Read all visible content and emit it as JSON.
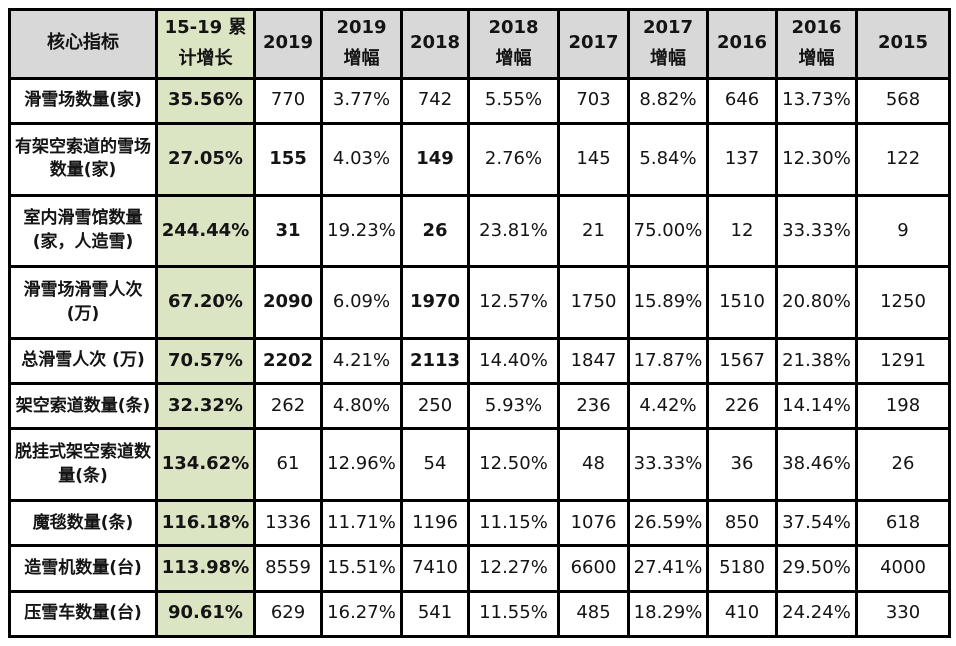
{
  "colors": {
    "header_bg": "#d8d8d8",
    "highlight_bg": "#dbe5c3",
    "border": "#000000",
    "text": "#141414"
  },
  "chart_data": {
    "type": "table",
    "title": "",
    "columns": [
      "核心指标",
      "15-19 累计增长",
      "2019",
      "2019 增幅",
      "2018",
      "2018 增幅",
      "2017",
      "2017 增幅",
      "2016",
      "2016 增幅",
      "2015"
    ],
    "header_cells": [
      {
        "key": "indicator",
        "green": false,
        "lines": [
          "核心指标"
        ]
      },
      {
        "key": "cum-growth",
        "green": true,
        "lines": [
          "15-19 累",
          "计增长"
        ]
      },
      {
        "key": "2019",
        "green": false,
        "lines": [
          "2019"
        ]
      },
      {
        "key": "2019-growth",
        "green": false,
        "lines": [
          "2019",
          "增幅"
        ]
      },
      {
        "key": "2018",
        "green": false,
        "lines": [
          "2018"
        ]
      },
      {
        "key": "2018-growth",
        "green": false,
        "lines": [
          "2018",
          "增幅"
        ]
      },
      {
        "key": "2017",
        "green": false,
        "lines": [
          "2017"
        ]
      },
      {
        "key": "2017-growth",
        "green": false,
        "lines": [
          "2017",
          "增幅"
        ]
      },
      {
        "key": "2016",
        "green": false,
        "lines": [
          "2016"
        ]
      },
      {
        "key": "2016-growth",
        "green": false,
        "lines": [
          "2016",
          "增幅"
        ]
      },
      {
        "key": "2015",
        "green": false,
        "lines": [
          "2015"
        ]
      }
    ],
    "rows": [
      [
        "滑雪场数量(家)",
        "35.56%",
        "770",
        "3.77%",
        "742",
        "5.55%",
        "703",
        "8.82%",
        "646",
        "13.73%",
        "568"
      ],
      [
        "有架空索道的雪场数量(家)",
        "27.05%",
        "155",
        "4.03%",
        "149",
        "2.76%",
        "145",
        "5.84%",
        "137",
        "12.30%",
        "122"
      ],
      [
        "室内滑雪馆数量(家，人造雪)",
        "244.44%",
        "31",
        "19.23%",
        "26",
        "23.81%",
        "21",
        "75.00%",
        "12",
        "33.33%",
        "9"
      ],
      [
        "滑雪场滑雪人次(万)",
        "67.20%",
        "2090",
        "6.09%",
        "1970",
        "12.57%",
        "1750",
        "15.89%",
        "1510",
        "20.80%",
        "1250"
      ],
      [
        "总滑雪人次 (万)",
        "70.57%",
        "2202",
        "4.21%",
        "2113",
        "14.40%",
        "1847",
        "17.87%",
        "1567",
        "21.38%",
        "1291"
      ],
      [
        "架空索道数量(条)",
        "32.32%",
        "262",
        "4.80%",
        "250",
        "5.93%",
        "236",
        "4.42%",
        "226",
        "14.14%",
        "198"
      ],
      [
        "脱挂式架空索道数量(条)",
        "134.62%",
        "61",
        "12.96%",
        "54",
        "12.50%",
        "48",
        "33.33%",
        "36",
        "38.46%",
        "26"
      ],
      [
        "魔毯数量(条)",
        "116.18%",
        "1336",
        "11.71%",
        "1196",
        "11.15%",
        "1076",
        "26.59%",
        "850",
        "37.54%",
        "618"
      ],
      [
        "造雪机数量(台)",
        "113.98%",
        "8559",
        "15.51%",
        "7410",
        "12.27%",
        "6600",
        "27.41%",
        "5180",
        "29.50%",
        "4000"
      ],
      [
        "压雪车数量(台)",
        "90.61%",
        "629",
        "16.27%",
        "541",
        "11.55%",
        "485",
        "18.29%",
        "410",
        "24.24%",
        "330"
      ]
    ],
    "bold_year_value_rows": [
      1,
      2,
      3,
      4
    ],
    "bold_year_value_columns": [
      2,
      4
    ],
    "layout_hints": {
      "grid": "all-borders",
      "header_row_bold": true,
      "indicator_column_bold": true,
      "highlight_column_index": 1
    }
  }
}
